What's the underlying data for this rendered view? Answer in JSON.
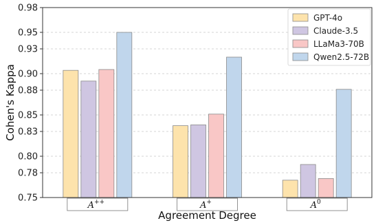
{
  "chart_data": {
    "type": "bar",
    "xlabel": "Agreement Degree",
    "ylabel": "Cohen's Kappa",
    "ylim": [
      0.75,
      0.98
    ],
    "yticks": [
      0.75,
      0.78,
      0.8,
      0.83,
      0.85,
      0.88,
      0.9,
      0.93,
      0.95,
      0.98
    ],
    "ytick_labels": [
      "0.75",
      "0.78",
      "0.80",
      "0.83",
      "0.85",
      "0.88",
      "0.90",
      "0.93",
      "0.95",
      "0.98"
    ],
    "grid": "horizontal dashed",
    "legend_position": "top-right",
    "categories": [
      {
        "base": "A",
        "sup": "++"
      },
      {
        "base": "A",
        "sup": "+"
      },
      {
        "base": "A",
        "sup": "0"
      }
    ],
    "series": [
      {
        "name": "GPT-4o",
        "color": "#fde3ac",
        "values": [
          0.904,
          0.837,
          0.771
        ]
      },
      {
        "name": "Claude-3.5",
        "color": "#cfc6e2",
        "values": [
          0.891,
          0.838,
          0.79
        ]
      },
      {
        "name": "LLaMa3-70B",
        "color": "#f9c7c6",
        "values": [
          0.905,
          0.851,
          0.773
        ]
      },
      {
        "name": "Qwen2.5-72B",
        "color": "#c0d6ec",
        "values": [
          0.95,
          0.92,
          0.881
        ]
      }
    ]
  }
}
